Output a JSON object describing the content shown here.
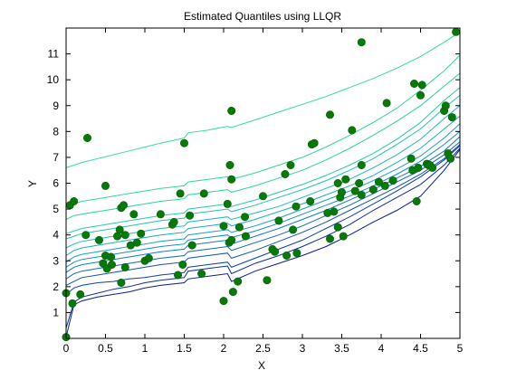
{
  "chart_data": {
    "type": "line",
    "title": "Estimated Quantiles using LLQR",
    "xlabel": "X",
    "ylabel": "Y",
    "xlim": [
      0,
      5
    ],
    "ylim": [
      0,
      12
    ],
    "xticks": [
      "0",
      "0.5",
      "1",
      "1.5",
      "2",
      "2.5",
      "3",
      "3.5",
      "4",
      "4.5",
      "5"
    ],
    "yticks": [
      "1",
      "2",
      "3",
      "4",
      "5",
      "6",
      "7",
      "8",
      "9",
      "10",
      "11"
    ],
    "grid": false,
    "legend": "none",
    "x": [
      0,
      0.1,
      0.2,
      0.4,
      0.6,
      0.8,
      1.0,
      1.2,
      1.5,
      1.55,
      1.8,
      2.05,
      2.1,
      2.4,
      2.7,
      3.0,
      3.3,
      3.6,
      3.9,
      4.2,
      4.5,
      4.8,
      5.0
    ],
    "series": [
      {
        "color": "#0a1e8c",
        "values": [
          0.05,
          1.3,
          1.45,
          1.6,
          1.7,
          1.8,
          1.95,
          2.05,
          2.15,
          2.3,
          2.4,
          2.5,
          2.2,
          2.6,
          2.9,
          3.2,
          3.55,
          4.0,
          4.5,
          4.95,
          5.5,
          6.5,
          7.3
        ]
      },
      {
        "color": "#0c2f9a",
        "values": [
          0.4,
          1.4,
          1.6,
          1.75,
          1.9,
          2.0,
          2.15,
          2.25,
          2.35,
          2.6,
          2.7,
          2.8,
          2.5,
          2.9,
          3.2,
          3.55,
          3.95,
          4.4,
          4.95,
          5.45,
          5.95,
          6.7,
          7.35
        ]
      },
      {
        "color": "#0e40a6",
        "values": [
          1.7,
          1.95,
          2.05,
          2.15,
          2.2,
          2.3,
          2.35,
          2.45,
          2.55,
          2.75,
          2.85,
          2.95,
          2.75,
          3.1,
          3.45,
          3.8,
          4.25,
          4.7,
          5.2,
          5.7,
          6.25,
          6.9,
          7.45
        ]
      },
      {
        "color": "#1054b0",
        "values": [
          2.05,
          2.2,
          2.35,
          2.45,
          2.55,
          2.65,
          2.75,
          2.85,
          2.95,
          3.1,
          3.2,
          3.3,
          3.1,
          3.4,
          3.75,
          4.1,
          4.5,
          4.95,
          5.4,
          5.85,
          6.35,
          6.95,
          7.5
        ]
      },
      {
        "color": "#1267b8",
        "values": [
          2.3,
          2.5,
          2.6,
          2.7,
          2.8,
          2.9,
          3.0,
          3.1,
          3.2,
          3.35,
          3.45,
          3.55,
          3.4,
          3.7,
          4.0,
          4.35,
          4.75,
          5.15,
          5.6,
          6.05,
          6.5,
          7.1,
          7.6
        ]
      },
      {
        "color": "#147ac0",
        "values": [
          2.55,
          2.75,
          2.85,
          2.95,
          3.05,
          3.15,
          3.25,
          3.35,
          3.45,
          3.6,
          3.7,
          3.8,
          3.65,
          3.95,
          4.25,
          4.6,
          4.95,
          5.35,
          5.75,
          6.2,
          6.65,
          7.25,
          7.8
        ]
      },
      {
        "color": "#168cc4",
        "values": [
          2.75,
          2.95,
          3.05,
          3.15,
          3.25,
          3.35,
          3.45,
          3.55,
          3.65,
          3.8,
          3.9,
          4.0,
          3.9,
          4.15,
          4.45,
          4.8,
          5.15,
          5.5,
          5.9,
          6.35,
          6.85,
          7.5,
          8.0
        ]
      },
      {
        "color": "#199dc6",
        "values": [
          2.95,
          3.15,
          3.25,
          3.35,
          3.45,
          3.55,
          3.65,
          3.75,
          3.85,
          4.0,
          4.1,
          4.2,
          4.1,
          4.35,
          4.65,
          5.0,
          5.35,
          5.7,
          6.1,
          6.55,
          7.05,
          7.75,
          8.3
        ]
      },
      {
        "color": "#1cabc4",
        "values": [
          3.2,
          3.4,
          3.5,
          3.6,
          3.7,
          3.8,
          3.9,
          4.0,
          4.1,
          4.25,
          4.35,
          4.45,
          4.35,
          4.6,
          4.9,
          5.2,
          5.55,
          5.9,
          6.3,
          6.8,
          7.35,
          8.1,
          8.6
        ]
      },
      {
        "color": "#1fb8c0",
        "values": [
          3.5,
          3.65,
          3.75,
          3.85,
          3.95,
          4.05,
          4.15,
          4.25,
          4.35,
          4.5,
          4.6,
          4.7,
          4.6,
          4.85,
          5.1,
          5.45,
          5.8,
          6.15,
          6.6,
          7.1,
          7.7,
          8.5,
          9.0
        ]
      },
      {
        "color": "#22c2b8",
        "values": [
          3.85,
          3.95,
          4.05,
          4.15,
          4.25,
          4.35,
          4.45,
          4.55,
          4.65,
          4.8,
          4.9,
          5.0,
          4.9,
          5.15,
          5.45,
          5.75,
          6.1,
          6.5,
          6.95,
          7.5,
          8.1,
          8.9,
          9.4
        ]
      },
      {
        "color": "#26c9ae",
        "values": [
          4.05,
          4.15,
          4.25,
          4.35,
          4.45,
          4.55,
          4.65,
          4.75,
          4.85,
          5.0,
          5.1,
          5.2,
          5.1,
          5.35,
          5.65,
          5.95,
          6.3,
          6.7,
          7.15,
          7.7,
          8.35,
          9.2,
          9.7
        ]
      },
      {
        "color": "#2ad0a6",
        "values": [
          4.6,
          4.75,
          4.8,
          4.9,
          5.0,
          5.1,
          5.2,
          5.3,
          5.4,
          5.55,
          5.65,
          5.75,
          5.65,
          5.9,
          6.2,
          6.5,
          6.9,
          7.35,
          7.85,
          8.4,
          9.0,
          9.75,
          10.25
        ]
      },
      {
        "color": "#2ed6a0",
        "values": [
          5.05,
          5.2,
          5.3,
          5.4,
          5.5,
          5.6,
          5.7,
          5.8,
          5.9,
          6.05,
          6.15,
          6.25,
          6.15,
          6.4,
          6.7,
          7.0,
          7.4,
          7.85,
          8.35,
          8.9,
          9.6,
          10.35,
          10.95
        ]
      },
      {
        "color": "#33dc9c",
        "values": [
          6.6,
          6.7,
          6.8,
          6.95,
          7.1,
          7.25,
          7.4,
          7.55,
          7.75,
          7.95,
          8.05,
          8.2,
          8.15,
          8.45,
          8.75,
          9.05,
          9.35,
          9.7,
          10.05,
          10.45,
          10.9,
          11.45,
          11.85
        ]
      }
    ],
    "points": [
      [
        0.0,
        0.05
      ],
      [
        0.0,
        1.75
      ],
      [
        0.05,
        5.15
      ],
      [
        0.08,
        1.35
      ],
      [
        0.1,
        5.3
      ],
      [
        0.18,
        1.7
      ],
      [
        0.25,
        4.0
      ],
      [
        0.27,
        7.75
      ],
      [
        0.42,
        3.8
      ],
      [
        0.47,
        2.9
      ],
      [
        0.5,
        5.9
      ],
      [
        0.5,
        3.2
      ],
      [
        0.52,
        2.7
      ],
      [
        0.57,
        3.15
      ],
      [
        0.58,
        2.85
      ],
      [
        0.65,
        3.95
      ],
      [
        0.68,
        4.2
      ],
      [
        0.7,
        5.05
      ],
      [
        0.7,
        2.15
      ],
      [
        0.73,
        5.15
      ],
      [
        0.75,
        2.75
      ],
      [
        0.75,
        4.0
      ],
      [
        0.82,
        3.6
      ],
      [
        0.86,
        4.8
      ],
      [
        0.9,
        3.7
      ],
      [
        0.95,
        4.05
      ],
      [
        1.0,
        3.0
      ],
      [
        1.05,
        3.1
      ],
      [
        1.2,
        4.8
      ],
      [
        1.35,
        4.4
      ],
      [
        1.37,
        4.5
      ],
      [
        1.42,
        2.45
      ],
      [
        1.45,
        5.6
      ],
      [
        1.48,
        2.85
      ],
      [
        1.5,
        7.55
      ],
      [
        1.57,
        4.75
      ],
      [
        1.6,
        3.6
      ],
      [
        1.72,
        2.5
      ],
      [
        1.75,
        5.6
      ],
      [
        2.0,
        1.45
      ],
      [
        2.0,
        4.35
      ],
      [
        2.05,
        5.2
      ],
      [
        2.07,
        3.7
      ],
      [
        2.08,
        6.7
      ],
      [
        2.1,
        3.8
      ],
      [
        2.1,
        6.15
      ],
      [
        2.1,
        8.8
      ],
      [
        2.12,
        1.8
      ],
      [
        2.18,
        2.2
      ],
      [
        2.2,
        4.3
      ],
      [
        2.27,
        4.7
      ],
      [
        2.28,
        3.95
      ],
      [
        2.5,
        5.5
      ],
      [
        2.55,
        2.25
      ],
      [
        2.62,
        3.45
      ],
      [
        2.65,
        3.35
      ],
      [
        2.7,
        4.55
      ],
      [
        2.78,
        6.35
      ],
      [
        2.8,
        3.2
      ],
      [
        2.85,
        6.7
      ],
      [
        2.88,
        4.2
      ],
      [
        2.92,
        5.1
      ],
      [
        2.93,
        3.3
      ],
      [
        3.1,
        5.3
      ],
      [
        3.12,
        7.5
      ],
      [
        3.15,
        7.55
      ],
      [
        3.32,
        4.85
      ],
      [
        3.35,
        3.85
      ],
      [
        3.35,
        8.65
      ],
      [
        3.4,
        4.9
      ],
      [
        3.45,
        4.3
      ],
      [
        3.45,
        6.0
      ],
      [
        3.48,
        5.45
      ],
      [
        3.5,
        5.65
      ],
      [
        3.52,
        3.95
      ],
      [
        3.55,
        6.15
      ],
      [
        3.63,
        8.05
      ],
      [
        3.67,
        5.7
      ],
      [
        3.72,
        6.0
      ],
      [
        3.75,
        11.45
      ],
      [
        3.75,
        6.7
      ],
      [
        3.75,
        5.55
      ],
      [
        3.9,
        5.75
      ],
      [
        3.97,
        6.05
      ],
      [
        4.05,
        5.9
      ],
      [
        4.07,
        9.1
      ],
      [
        4.15,
        6.1
      ],
      [
        4.38,
        6.95
      ],
      [
        4.4,
        6.5
      ],
      [
        4.42,
        9.85
      ],
      [
        4.45,
        5.3
      ],
      [
        4.47,
        6.6
      ],
      [
        4.5,
        9.4
      ],
      [
        4.52,
        9.8
      ],
      [
        4.58,
        6.75
      ],
      [
        4.6,
        6.7
      ],
      [
        4.62,
        6.7
      ],
      [
        4.65,
        6.6
      ],
      [
        4.8,
        8.8
      ],
      [
        4.82,
        9.0
      ],
      [
        4.85,
        7.15
      ],
      [
        4.88,
        6.95
      ],
      [
        4.9,
        8.55
      ],
      [
        4.95,
        11.85
      ]
    ]
  }
}
